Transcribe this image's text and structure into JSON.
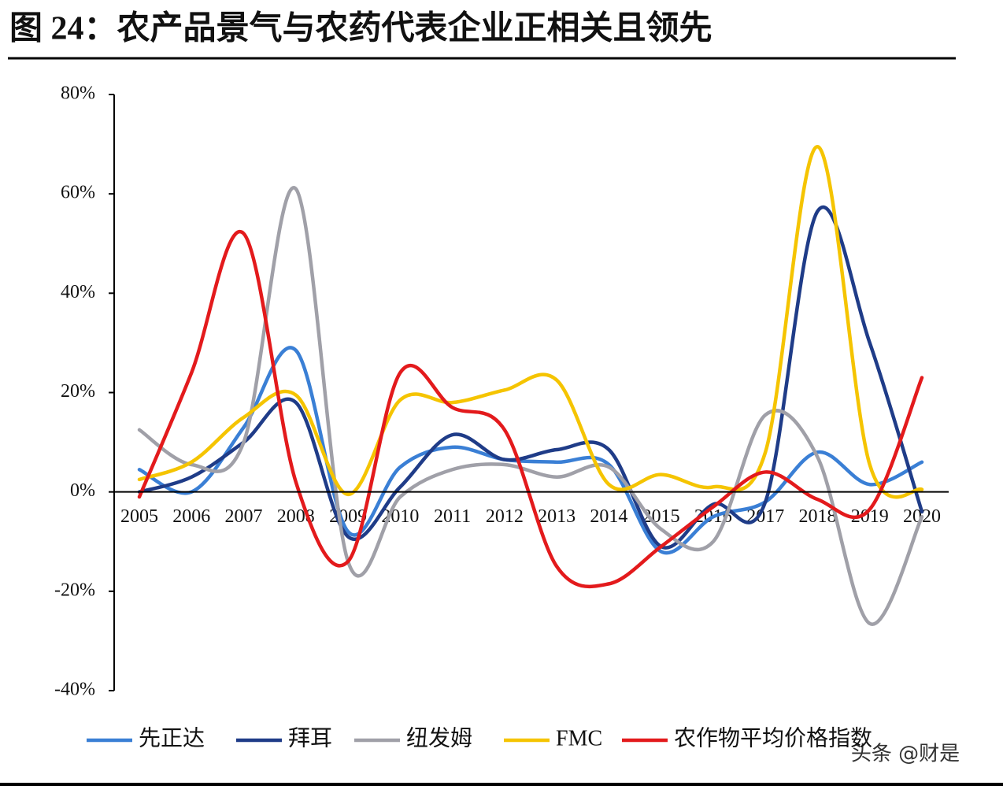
{
  "chart_data": {
    "type": "line",
    "title": "图 24：农产品景气与农药代表企业正相关且领先",
    "watermark": "头条 @财是",
    "categories": [
      "2005",
      "2006",
      "2007",
      "2008",
      "2009",
      "2010",
      "2011",
      "2012",
      "2013",
      "2014",
      "2015",
      "2016",
      "2017",
      "2018",
      "2019",
      "2020"
    ],
    "ylim": [
      -40,
      80
    ],
    "yticks": [
      {
        "value": -40,
        "label": "-40%"
      },
      {
        "value": -20,
        "label": "-20%"
      },
      {
        "value": 0,
        "label": "0%"
      },
      {
        "value": 20,
        "label": "20%"
      },
      {
        "value": 40,
        "label": "40%"
      },
      {
        "value": 60,
        "label": "60%"
      },
      {
        "value": 80,
        "label": "80%"
      }
    ],
    "series": [
      {
        "name": "先正达",
        "color": "#3a7fd5",
        "values": [
          4.5,
          0,
          13,
          28.5,
          -8,
          5,
          9,
          6.5,
          6,
          5.5,
          -12,
          -5,
          -2,
          8,
          1.5,
          6
        ]
      },
      {
        "name": "拜耳",
        "color": "#1f3c88",
        "values": [
          0,
          3,
          10,
          18,
          -9,
          1,
          11.5,
          6.5,
          8.5,
          8.5,
          -11,
          -2.5,
          -2,
          56.5,
          30,
          -4
        ]
      },
      {
        "name": "纽发姆",
        "color": "#a0a0a8",
        "values": [
          12.5,
          5.5,
          10,
          61,
          -14,
          -1,
          4.5,
          5.5,
          3,
          5,
          -7.5,
          -10,
          15.5,
          7,
          -26.5,
          -5
        ]
      },
      {
        "name": "FMC",
        "color": "#f5c400",
        "values": [
          2.5,
          6,
          15,
          19.5,
          -0.5,
          18.5,
          18,
          20.5,
          22.5,
          1.5,
          3.5,
          1,
          8,
          69.5,
          5.5,
          0.5
        ]
      },
      {
        "name": "农作物平均价格指数",
        "color": "#e31a1c",
        "values": [
          -1,
          24,
          52,
          2,
          -14,
          24,
          17,
          12.5,
          -15,
          -18.5,
          -11,
          -3,
          4,
          -1.5,
          -3.5,
          23
        ]
      }
    ]
  }
}
